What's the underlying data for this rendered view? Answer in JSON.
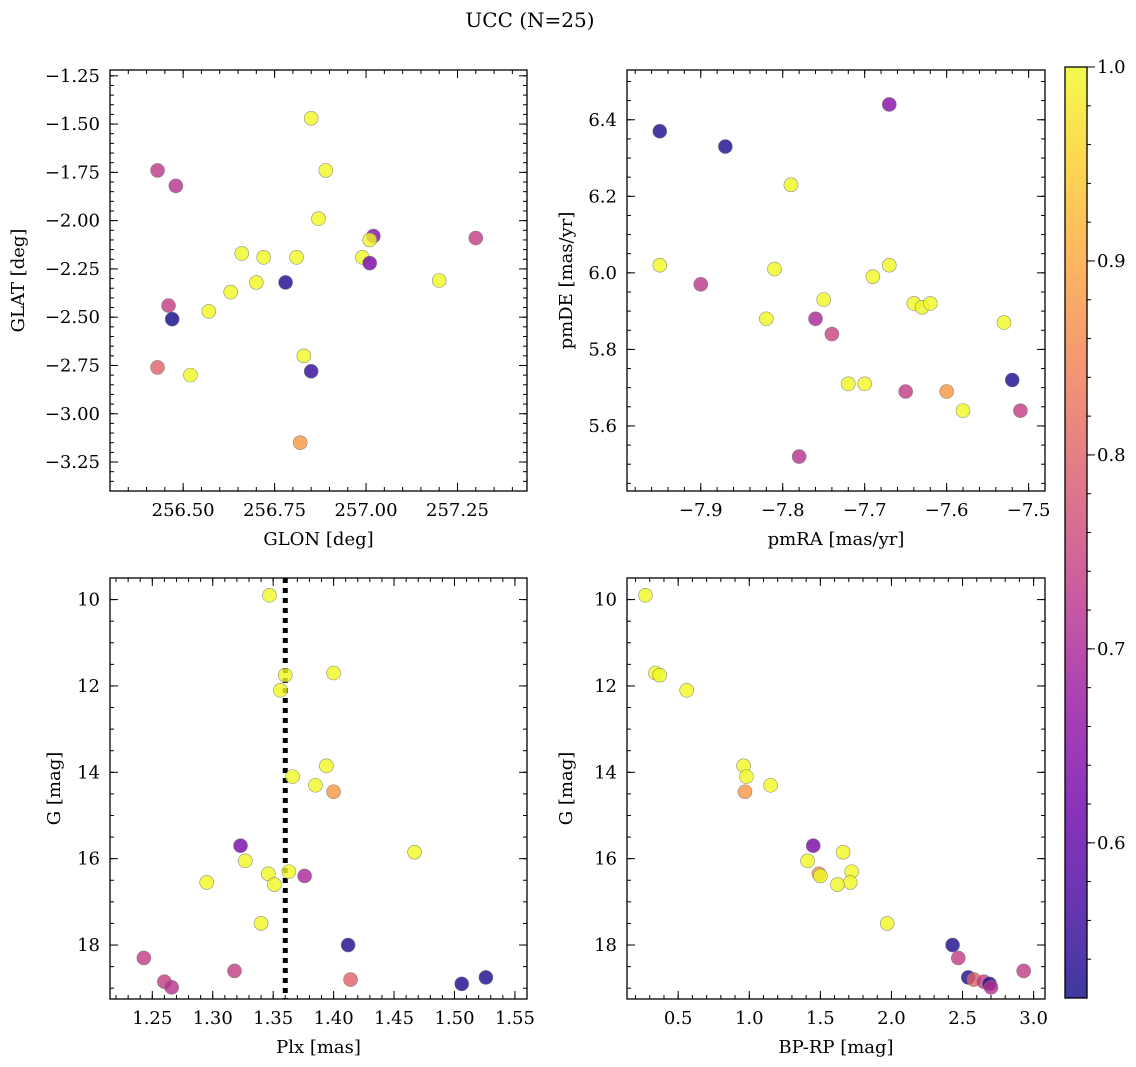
{
  "figure": {
    "title": "UCC (N=25)"
  },
  "colorbar": {
    "min": 0.52,
    "max": 1.0,
    "ticks": [
      0.6,
      0.7,
      0.8,
      0.9,
      1.0
    ],
    "tick_labels": [
      "0.6",
      "0.7",
      "0.8",
      "0.9",
      "1.0"
    ],
    "colormap": "plasma",
    "alpha": 0.8
  },
  "chart_data": [
    {
      "type": "scatter",
      "xlabel": "GLON [deg]",
      "ylabel": "GLAT [deg]",
      "xlim": [
        256.3,
        257.44
      ],
      "ylim": [
        -3.4,
        -1.22
      ],
      "x_ticks": [
        256.5,
        256.75,
        257.0,
        257.25
      ],
      "x_tick_labels": [
        "256.50",
        "256.75",
        "257.00",
        "257.25"
      ],
      "x_minor_step": 0.05,
      "y_ticks": [
        -1.25,
        -1.5,
        -1.75,
        -2.0,
        -2.25,
        -2.5,
        -2.75,
        -3.0,
        -3.25
      ],
      "y_tick_labels": [
        "−1.25",
        "−1.50",
        "−1.75",
        "−2.00",
        "−2.25",
        "−2.50",
        "−2.75",
        "−3.00",
        "−3.25"
      ],
      "y_minor_step": 0.05,
      "points": [
        {
          "x": 256.85,
          "y": -1.47,
          "c": 1.0
        },
        {
          "x": 256.89,
          "y": -1.74,
          "c": 1.0
        },
        {
          "x": 256.43,
          "y": -1.74,
          "c": 0.73
        },
        {
          "x": 256.48,
          "y": -1.82,
          "c": 0.72
        },
        {
          "x": 256.87,
          "y": -1.99,
          "c": 1.0
        },
        {
          "x": 257.02,
          "y": -2.08,
          "c": 0.65
        },
        {
          "x": 257.01,
          "y": -2.1,
          "c": 1.0
        },
        {
          "x": 257.3,
          "y": -2.09,
          "c": 0.74
        },
        {
          "x": 256.66,
          "y": -2.17,
          "c": 1.0
        },
        {
          "x": 256.72,
          "y": -2.19,
          "c": 1.0
        },
        {
          "x": 256.81,
          "y": -2.19,
          "c": 1.0
        },
        {
          "x": 256.99,
          "y": -2.19,
          "c": 1.0
        },
        {
          "x": 257.01,
          "y": -2.22,
          "c": 0.63
        },
        {
          "x": 256.7,
          "y": -2.32,
          "c": 1.0
        },
        {
          "x": 256.63,
          "y": -2.37,
          "c": 1.0
        },
        {
          "x": 256.78,
          "y": -2.32,
          "c": 0.53
        },
        {
          "x": 257.2,
          "y": -2.31,
          "c": 1.0
        },
        {
          "x": 256.46,
          "y": -2.44,
          "c": 0.74
        },
        {
          "x": 256.57,
          "y": -2.47,
          "c": 1.0
        },
        {
          "x": 256.47,
          "y": -2.51,
          "c": 0.52
        },
        {
          "x": 256.83,
          "y": -2.7,
          "c": 1.0
        },
        {
          "x": 256.43,
          "y": -2.76,
          "c": 0.8
        },
        {
          "x": 256.85,
          "y": -2.78,
          "c": 0.55
        },
        {
          "x": 256.52,
          "y": -2.8,
          "c": 1.0
        },
        {
          "x": 256.82,
          "y": -3.15,
          "c": 0.88
        }
      ]
    },
    {
      "type": "scatter",
      "xlabel": "pmRA [mas/yr]",
      "ylabel": "pmDE [mas/yr]",
      "xlim": [
        -7.99,
        -7.48
      ],
      "ylim": [
        5.43,
        6.53
      ],
      "x_ticks": [
        -7.9,
        -7.8,
        -7.7,
        -7.6,
        -7.5
      ],
      "x_tick_labels": [
        "−7.9",
        "−7.8",
        "−7.7",
        "−7.6",
        "−7.5"
      ],
      "x_minor_step": 0.02,
      "y_ticks": [
        5.6,
        5.8,
        6.0,
        6.2,
        6.4
      ],
      "y_tick_labels": [
        "5.6",
        "5.8",
        "6.0",
        "6.2",
        "6.4"
      ],
      "y_minor_step": 0.05,
      "points": [
        {
          "x": -7.67,
          "y": 6.44,
          "c": 0.65
        },
        {
          "x": -7.95,
          "y": 6.37,
          "c": 0.53
        },
        {
          "x": -7.87,
          "y": 6.33,
          "c": 0.53
        },
        {
          "x": -7.79,
          "y": 6.23,
          "c": 1.0
        },
        {
          "x": -7.95,
          "y": 6.02,
          "c": 1.0
        },
        {
          "x": -7.81,
          "y": 6.01,
          "c": 1.0
        },
        {
          "x": -7.67,
          "y": 6.02,
          "c": 1.0
        },
        {
          "x": -7.9,
          "y": 5.97,
          "c": 0.73
        },
        {
          "x": -7.69,
          "y": 5.99,
          "c": 1.0
        },
        {
          "x": -7.75,
          "y": 5.93,
          "c": 1.0
        },
        {
          "x": -7.64,
          "y": 5.92,
          "c": 1.0
        },
        {
          "x": -7.63,
          "y": 5.91,
          "c": 1.0
        },
        {
          "x": -7.62,
          "y": 5.92,
          "c": 1.0
        },
        {
          "x": -7.82,
          "y": 5.88,
          "c": 1.0
        },
        {
          "x": -7.76,
          "y": 5.88,
          "c": 0.7
        },
        {
          "x": -7.53,
          "y": 5.87,
          "c": 1.0
        },
        {
          "x": -7.74,
          "y": 5.84,
          "c": 0.75
        },
        {
          "x": -7.52,
          "y": 5.72,
          "c": 0.53
        },
        {
          "x": -7.72,
          "y": 5.71,
          "c": 1.0
        },
        {
          "x": -7.7,
          "y": 5.71,
          "c": 1.0
        },
        {
          "x": -7.65,
          "y": 5.69,
          "c": 0.74
        },
        {
          "x": -7.6,
          "y": 5.69,
          "c": 0.88
        },
        {
          "x": -7.58,
          "y": 5.64,
          "c": 1.0
        },
        {
          "x": -7.51,
          "y": 5.64,
          "c": 0.74
        },
        {
          "x": -7.78,
          "y": 5.52,
          "c": 0.72
        }
      ]
    },
    {
      "type": "scatter",
      "xlabel": "Plx [mas]",
      "ylabel": "G [mag]",
      "xlim": [
        1.215,
        1.56
      ],
      "ylim": [
        19.25,
        9.5
      ],
      "y_inverted": true,
      "x_ticks": [
        1.25,
        1.3,
        1.35,
        1.4,
        1.45,
        1.5,
        1.55
      ],
      "x_tick_labels": [
        "1.25",
        "1.30",
        "1.35",
        "1.40",
        "1.45",
        "1.50",
        "1.55"
      ],
      "x_minor_step": 0.01,
      "y_ticks": [
        10,
        12,
        14,
        16,
        18
      ],
      "y_tick_labels": [
        "10",
        "12",
        "14",
        "16",
        "18"
      ],
      "y_minor_step": 0.5,
      "vline": {
        "x": 1.36,
        "style": "dotted"
      },
      "points": [
        {
          "x": 1.347,
          "y": 9.9,
          "c": 1.0
        },
        {
          "x": 1.36,
          "y": 11.75,
          "c": 1.0
        },
        {
          "x": 1.4,
          "y": 11.7,
          "c": 1.0
        },
        {
          "x": 1.356,
          "y": 12.1,
          "c": 1.0
        },
        {
          "x": 1.394,
          "y": 13.85,
          "c": 1.0
        },
        {
          "x": 1.366,
          "y": 14.1,
          "c": 1.0
        },
        {
          "x": 1.385,
          "y": 14.3,
          "c": 1.0
        },
        {
          "x": 1.4,
          "y": 14.45,
          "c": 0.88
        },
        {
          "x": 1.323,
          "y": 15.7,
          "c": 0.63
        },
        {
          "x": 1.467,
          "y": 15.85,
          "c": 1.0
        },
        {
          "x": 1.327,
          "y": 16.05,
          "c": 1.0
        },
        {
          "x": 1.346,
          "y": 16.35,
          "c": 1.0
        },
        {
          "x": 1.363,
          "y": 16.3,
          "c": 1.0
        },
        {
          "x": 1.376,
          "y": 16.4,
          "c": 0.7
        },
        {
          "x": 1.295,
          "y": 16.55,
          "c": 1.0
        },
        {
          "x": 1.351,
          "y": 16.6,
          "c": 1.0
        },
        {
          "x": 1.34,
          "y": 17.5,
          "c": 1.0
        },
        {
          "x": 1.412,
          "y": 18.0,
          "c": 0.53
        },
        {
          "x": 1.243,
          "y": 18.3,
          "c": 0.74
        },
        {
          "x": 1.318,
          "y": 18.6,
          "c": 0.74
        },
        {
          "x": 1.526,
          "y": 18.75,
          "c": 0.53
        },
        {
          "x": 1.414,
          "y": 18.8,
          "c": 0.8
        },
        {
          "x": 1.26,
          "y": 18.85,
          "c": 0.74
        },
        {
          "x": 1.506,
          "y": 18.9,
          "c": 0.53
        },
        {
          "x": 1.266,
          "y": 18.98,
          "c": 0.72
        }
      ]
    },
    {
      "type": "scatter",
      "xlabel": "BP-RP [mag]",
      "ylabel": "G [mag]",
      "xlim": [
        0.14,
        3.08
      ],
      "ylim": [
        19.25,
        9.5
      ],
      "y_inverted": true,
      "x_ticks": [
        0.5,
        1.0,
        1.5,
        2.0,
        2.5,
        3.0
      ],
      "x_tick_labels": [
        "0.5",
        "1.0",
        "1.5",
        "2.0",
        "2.5",
        "3.0"
      ],
      "x_minor_step": 0.1,
      "y_ticks": [
        10,
        12,
        14,
        16,
        18
      ],
      "y_tick_labels": [
        "10",
        "12",
        "14",
        "16",
        "18"
      ],
      "y_minor_step": 0.5,
      "points": [
        {
          "x": 0.27,
          "y": 9.9,
          "c": 1.0
        },
        {
          "x": 0.34,
          "y": 11.7,
          "c": 1.0
        },
        {
          "x": 0.37,
          "y": 11.75,
          "c": 1.0
        },
        {
          "x": 0.56,
          "y": 12.1,
          "c": 1.0
        },
        {
          "x": 0.96,
          "y": 13.85,
          "c": 1.0
        },
        {
          "x": 0.98,
          "y": 14.1,
          "c": 1.0
        },
        {
          "x": 1.15,
          "y": 14.3,
          "c": 1.0
        },
        {
          "x": 0.97,
          "y": 14.45,
          "c": 0.88
        },
        {
          "x": 1.45,
          "y": 15.7,
          "c": 0.63
        },
        {
          "x": 1.66,
          "y": 15.85,
          "c": 1.0
        },
        {
          "x": 1.41,
          "y": 16.05,
          "c": 1.0
        },
        {
          "x": 1.72,
          "y": 16.3,
          "c": 1.0
        },
        {
          "x": 1.49,
          "y": 16.35,
          "c": 0.88
        },
        {
          "x": 1.5,
          "y": 16.4,
          "c": 1.0
        },
        {
          "x": 1.71,
          "y": 16.55,
          "c": 1.0
        },
        {
          "x": 1.62,
          "y": 16.6,
          "c": 1.0
        },
        {
          "x": 1.97,
          "y": 17.5,
          "c": 1.0
        },
        {
          "x": 2.43,
          "y": 18.0,
          "c": 0.53
        },
        {
          "x": 2.47,
          "y": 18.3,
          "c": 0.74
        },
        {
          "x": 2.93,
          "y": 18.6,
          "c": 0.74
        },
        {
          "x": 2.54,
          "y": 18.75,
          "c": 0.53
        },
        {
          "x": 2.58,
          "y": 18.8,
          "c": 0.8
        },
        {
          "x": 2.65,
          "y": 18.85,
          "c": 0.74
        },
        {
          "x": 2.69,
          "y": 18.9,
          "c": 0.53
        },
        {
          "x": 2.7,
          "y": 18.98,
          "c": 0.72
        }
      ]
    }
  ]
}
